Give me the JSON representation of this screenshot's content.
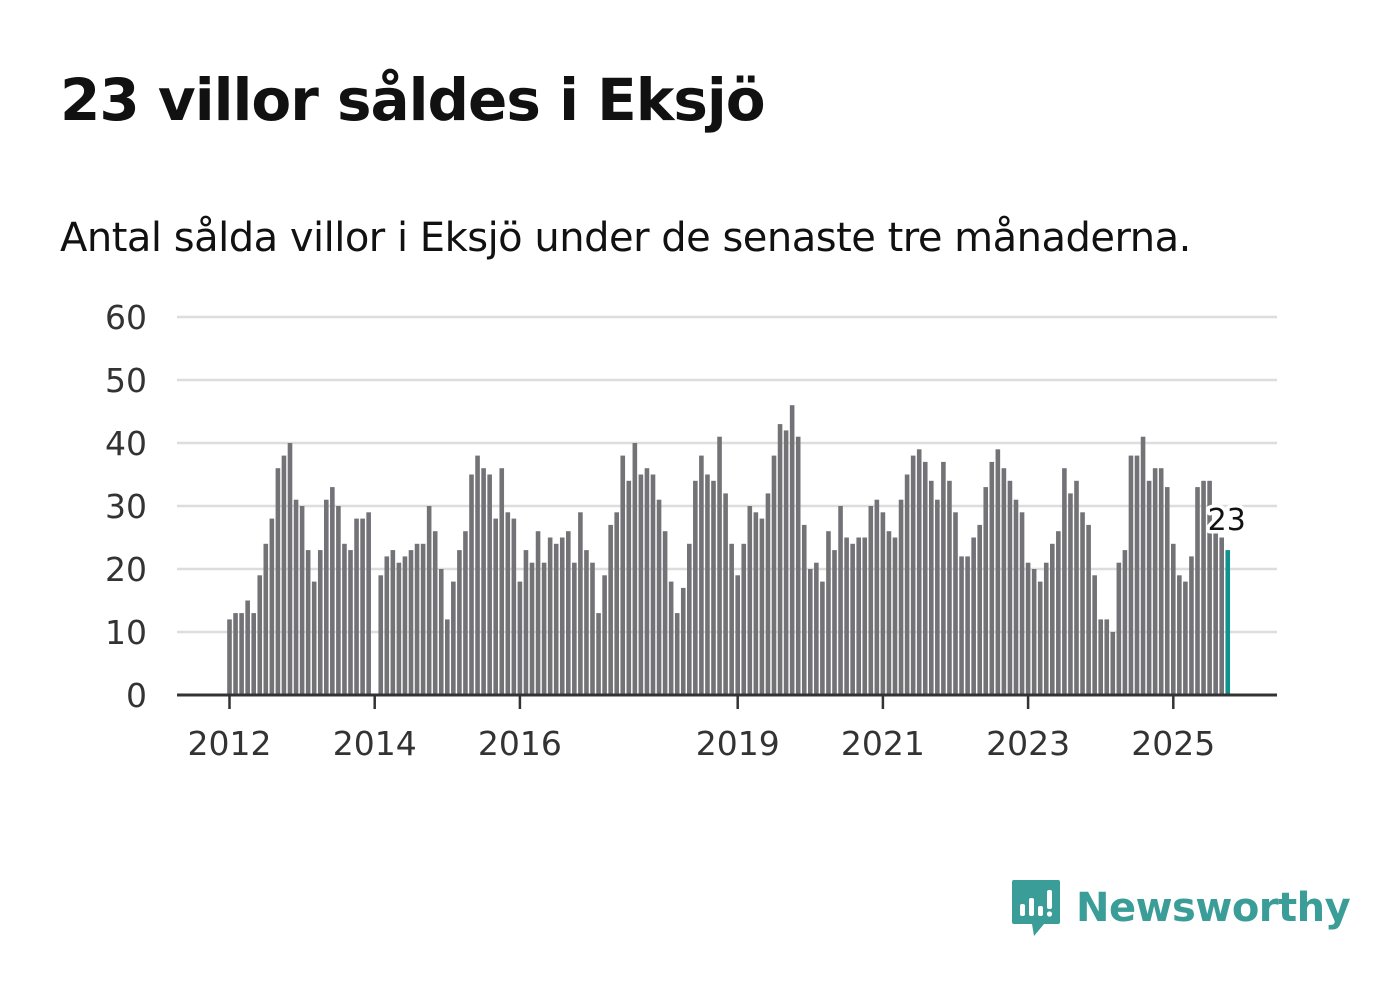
{
  "header": {
    "title": "23 villor såldes i Eksjö",
    "subtitle": "Antal sålda villor i Eksjö under de senaste tre månaderna."
  },
  "brand": {
    "name": "Newsworthy",
    "icon": "newsworthy-chart-bubble-icon",
    "color": "#3a9d98"
  },
  "colors": {
    "bar": "#737277",
    "highlight": "#12928f",
    "grid": "#dddddd",
    "axis": "#333333"
  },
  "chart_data": {
    "type": "bar",
    "title": "23 villor såldes i Eksjö",
    "subtitle": "Antal sålda villor i Eksjö under de senaste tre månaderna.",
    "xlabel": "",
    "ylabel": "",
    "ylim": [
      0,
      60
    ],
    "yticks": [
      0,
      10,
      20,
      30,
      40,
      50,
      60
    ],
    "grid": true,
    "start": "2012-01",
    "xticks": [
      {
        "label": "2012",
        "month": "2012-01"
      },
      {
        "label": "2014",
        "month": "2014-01"
      },
      {
        "label": "2016",
        "month": "2016-01"
      },
      {
        "label": "2019",
        "month": "2019-01"
      },
      {
        "label": "2021",
        "month": "2021-01"
      },
      {
        "label": "2023",
        "month": "2023-01"
      },
      {
        "label": "2025",
        "month": "2025-01"
      }
    ],
    "values": [
      12,
      13,
      13,
      15,
      13,
      19,
      24,
      28,
      36,
      38,
      40,
      31,
      30,
      23,
      18,
      23,
      31,
      33,
      30,
      24,
      23,
      28,
      28,
      29,
      null,
      19,
      22,
      23,
      21,
      22,
      23,
      24,
      24,
      30,
      26,
      20,
      12,
      18,
      23,
      26,
      35,
      38,
      36,
      35,
      28,
      36,
      29,
      28,
      18,
      23,
      21,
      26,
      21,
      25,
      24,
      25,
      26,
      21,
      29,
      23,
      21,
      13,
      19,
      27,
      29,
      38,
      34,
      40,
      35,
      36,
      35,
      31,
      26,
      18,
      13,
      17,
      24,
      34,
      38,
      35,
      34,
      41,
      32,
      24,
      19,
      24,
      30,
      29,
      28,
      32,
      38,
      43,
      42,
      46,
      41,
      27,
      20,
      21,
      18,
      26,
      23,
      30,
      25,
      24,
      25,
      25,
      30,
      31,
      29,
      26,
      25,
      31,
      35,
      38,
      39,
      37,
      34,
      31,
      37,
      34,
      29,
      22,
      22,
      25,
      27,
      33,
      37,
      39,
      36,
      34,
      31,
      29,
      21,
      20,
      18,
      21,
      24,
      26,
      36,
      32,
      34,
      29,
      27,
      19,
      12,
      12,
      10,
      21,
      23,
      38,
      38,
      41,
      34,
      36,
      36,
      33,
      24,
      19,
      18,
      22,
      33,
      34,
      34,
      26,
      25,
      23
    ],
    "highlight_last": true,
    "annotation": {
      "label": "23",
      "value": 23
    }
  }
}
